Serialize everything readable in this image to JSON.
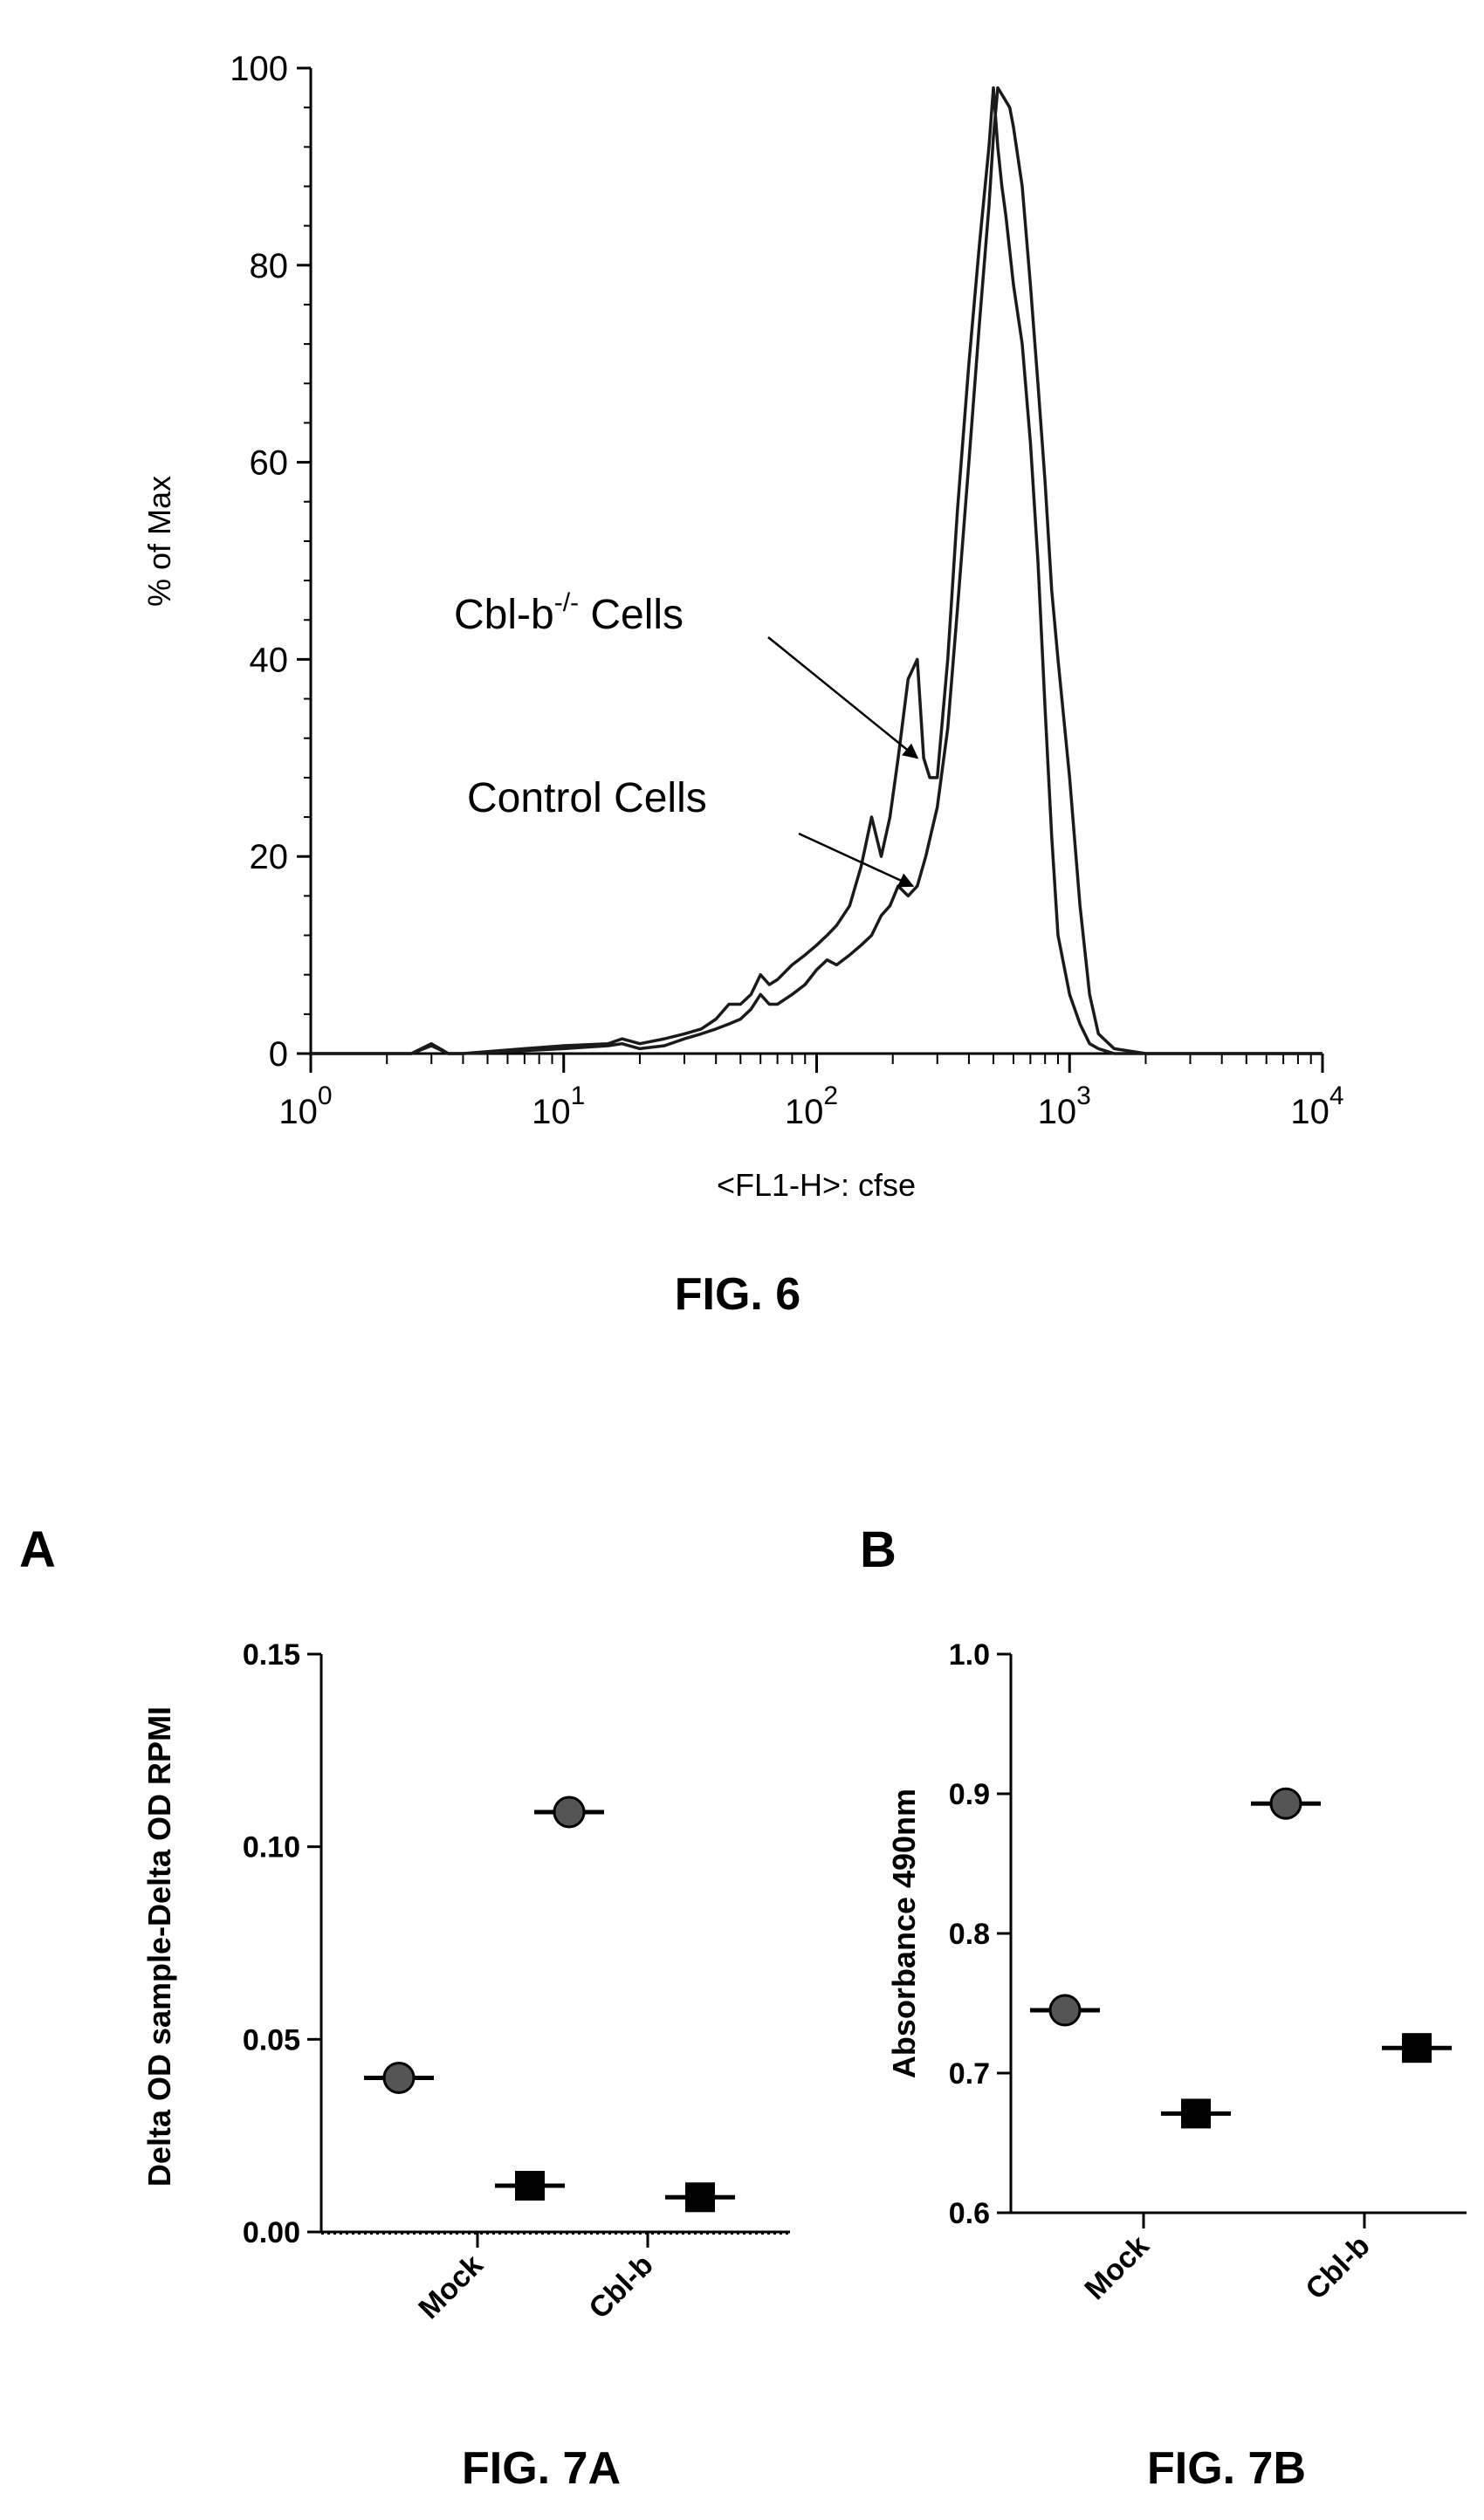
{
  "chart_data": [
    {
      "id": "fig6",
      "type": "line",
      "title": "FIG. 6",
      "xlabel": "<FL1-H>: cfse",
      "ylabel": "% of Max",
      "x_scale": "log",
      "xlim": [
        1,
        10000
      ],
      "ylim": [
        0,
        100
      ],
      "x_ticks": [
        {
          "value": 1,
          "base": "10",
          "exp": "0"
        },
        {
          "value": 10,
          "base": "10",
          "exp": "1"
        },
        {
          "value": 100,
          "base": "10",
          "exp": "2"
        },
        {
          "value": 1000,
          "base": "10",
          "exp": "3"
        },
        {
          "value": 10000,
          "base": "10",
          "exp": "4"
        }
      ],
      "y_ticks": [
        "0",
        "20",
        "40",
        "60",
        "80",
        "100"
      ],
      "annotations": [
        {
          "text": "Cbl-b",
          "superscript": "-/-",
          "text_after": " Cells",
          "series": "Cbl-b-/- Cells",
          "point": [
            250,
            30
          ]
        },
        {
          "text": "Control Cells",
          "superscript": "",
          "text_after": "",
          "series": "Control Cells",
          "point": [
            240,
            17
          ]
        }
      ],
      "series": [
        {
          "name": "Cbl-b-/- Cells",
          "x": [
            1,
            2.5,
            3,
            3.5,
            4,
            7,
            10,
            15,
            17,
            20,
            25,
            30,
            35,
            40,
            45,
            50,
            55,
            60,
            65,
            70,
            80,
            90,
            100,
            110,
            120,
            135,
            150,
            165,
            180,
            195,
            210,
            230,
            250,
            265,
            280,
            300,
            330,
            360,
            400,
            440,
            480,
            500,
            520,
            540,
            560,
            600,
            650,
            700,
            750,
            800,
            850,
            900,
            1000,
            1100,
            1200,
            1300,
            1500,
            2000,
            10000
          ],
          "y": [
            0,
            0,
            1,
            0,
            0,
            0.5,
            0.8,
            1,
            1.5,
            1,
            1.5,
            2,
            2.5,
            3.5,
            5,
            5,
            6,
            8,
            7,
            7.5,
            9,
            10,
            11,
            12,
            13,
            15,
            19,
            24,
            20,
            24,
            30,
            38,
            40,
            30,
            28,
            28,
            40,
            55,
            70,
            82,
            92,
            98,
            92,
            88,
            85,
            78,
            72,
            62,
            50,
            35,
            22,
            12,
            6,
            3,
            1,
            0.5,
            0,
            0,
            0
          ]
        },
        {
          "name": "Control Cells",
          "x": [
            1,
            2.5,
            3,
            3.5,
            4,
            7,
            10,
            15,
            17,
            20,
            25,
            30,
            35,
            40,
            45,
            50,
            55,
            60,
            65,
            70,
            80,
            90,
            100,
            110,
            120,
            135,
            150,
            165,
            180,
            195,
            210,
            230,
            250,
            270,
            300,
            330,
            360,
            400,
            440,
            480,
            500,
            520,
            550,
            580,
            600,
            650,
            700,
            750,
            800,
            850,
            900,
            1000,
            1100,
            1200,
            1300,
            1500,
            2000,
            10000
          ],
          "y": [
            0,
            0,
            0.8,
            0,
            0,
            0.3,
            0.5,
            0.8,
            1,
            0.5,
            0.8,
            1.5,
            2,
            2.5,
            3,
            3.5,
            4.5,
            6,
            5,
            5,
            6,
            7,
            8.5,
            9.5,
            9,
            10,
            11,
            12,
            14,
            15,
            17,
            16,
            17,
            20,
            25,
            33,
            45,
            60,
            74,
            86,
            93,
            98,
            97,
            96,
            94,
            88,
            78,
            68,
            58,
            47,
            40,
            28,
            15,
            6,
            2,
            0.5,
            0,
            0
          ]
        }
      ]
    },
    {
      "id": "fig7a",
      "type": "scatter",
      "panel": "A",
      "title": "FIG. 7A",
      "xlabel": "",
      "ylabel": "Delta OD sample-Delta OD RPMI",
      "categories": [
        "Mock",
        "Cbl-b"
      ],
      "ylim": [
        0,
        0.15
      ],
      "y_ticks": [
        "0.00",
        "0.05",
        "0.10",
        "0.15"
      ],
      "series": [
        {
          "marker": "circle",
          "values": [
            0.04,
            0.109
          ]
        },
        {
          "marker": "square",
          "values": [
            0.012,
            0.009
          ]
        }
      ]
    },
    {
      "id": "fig7b",
      "type": "scatter",
      "panel": "B",
      "title": "FIG. 7B",
      "xlabel": "",
      "ylabel": "Absorbance 490nm",
      "categories": [
        "Mock",
        "Cbl-b"
      ],
      "ylim": [
        0.6,
        1.0
      ],
      "y_ticks": [
        "0.6",
        "0.7",
        "0.8",
        "0.9",
        "1.0"
      ],
      "series": [
        {
          "marker": "circle",
          "values": [
            0.745,
            0.893
          ]
        },
        {
          "marker": "square",
          "values": [
            0.671,
            0.718
          ]
        }
      ]
    }
  ]
}
